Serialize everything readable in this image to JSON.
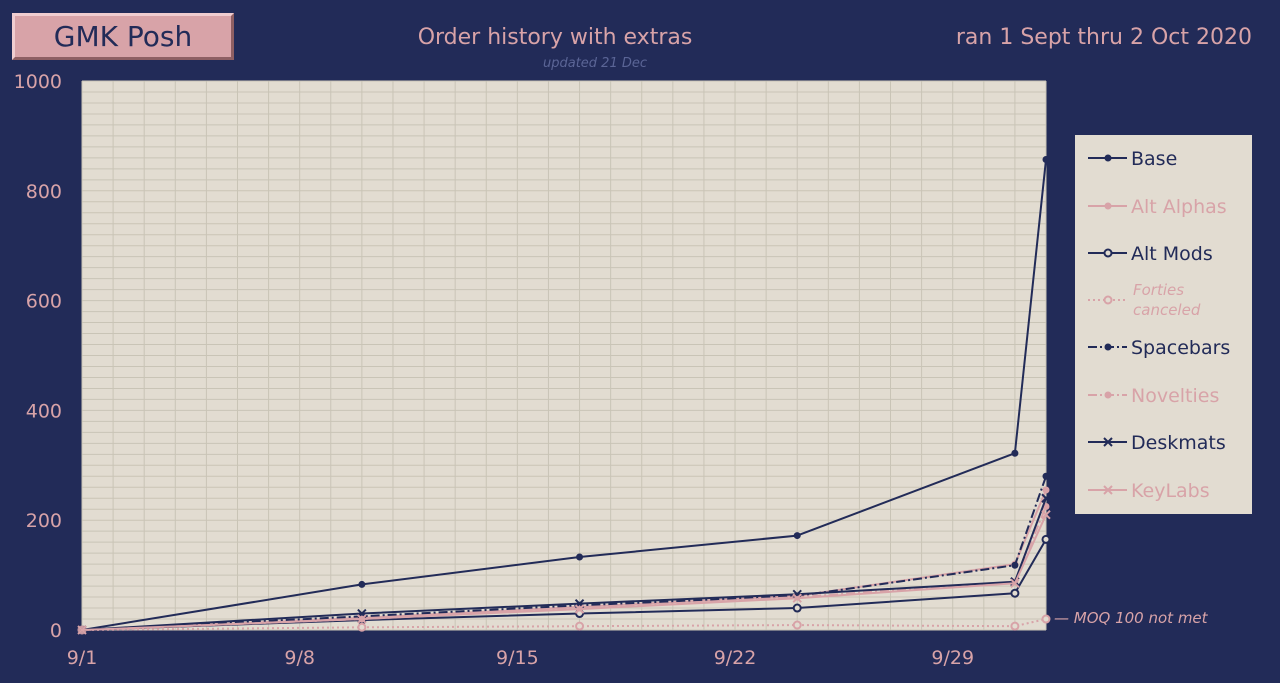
{
  "header": {
    "badge": "GMK Posh",
    "title": "Order history with extras",
    "subtitle": "updated 21 Dec",
    "range": "ran 1 Sept thru 2 Oct 2020"
  },
  "colors": {
    "background": "#222b58",
    "plot_bg": "#e2dcd1",
    "grid": "#c9c4b6",
    "navy": "#222b58",
    "pink": "#d8a3a8"
  },
  "chart_data": {
    "type": "line",
    "x": [
      "2020-09-01",
      "2020-09-10",
      "2020-09-17",
      "2020-09-24",
      "2020-10-01",
      "2020-10-02"
    ],
    "xticks": [
      "2020-09-01",
      "2020-09-08",
      "2020-09-15",
      "2020-09-22",
      "2020-09-29"
    ],
    "xtick_labels": [
      "9/1",
      "9/8",
      "9/15",
      "9/22",
      "9/29"
    ],
    "yticks": [
      0,
      200,
      400,
      600,
      800,
      1000
    ],
    "ylim": [
      0,
      1000
    ],
    "grid": true,
    "legend_position": "right",
    "series": [
      {
        "name": "Base",
        "values": [
          0,
          83,
          133,
          172,
          322,
          857
        ],
        "color": "#222b58",
        "marker": "dot",
        "dash": "solid"
      },
      {
        "name": "Alt Alphas",
        "values": [
          0,
          22,
          42,
          62,
          120,
          255
        ],
        "color": "#d8a3a8",
        "marker": "dot",
        "dash": "solid"
      },
      {
        "name": "Alt Mods",
        "values": [
          0,
          18,
          30,
          40,
          67,
          165
        ],
        "color": "#222b58",
        "marker": "ring",
        "dash": "solid"
      },
      {
        "name": "Forties canceled",
        "values": [
          0,
          5,
          7,
          9,
          7,
          20
        ],
        "color": "#d8a3a8",
        "marker": "ring",
        "dash": "dotted",
        "italic": true
      },
      {
        "name": "Spacebars",
        "values": [
          0,
          25,
          45,
          62,
          118,
          280
        ],
        "color": "#222b58",
        "marker": "dot",
        "dash": "dashdot"
      },
      {
        "name": "Novelties",
        "values": [
          0,
          20,
          40,
          60,
          88,
          225
        ],
        "color": "#d8a3a8",
        "marker": "dot",
        "dash": "dashdot"
      },
      {
        "name": "Deskmats",
        "values": [
          0,
          30,
          48,
          65,
          88,
          240
        ],
        "color": "#222b58",
        "marker": "x",
        "dash": "solid"
      },
      {
        "name": "KeyLabs",
        "values": [
          0,
          20,
          38,
          58,
          85,
          210
        ],
        "color": "#d8a3a8",
        "marker": "x",
        "dash": "solid"
      }
    ],
    "annotation": "— MOQ 100 not met"
  }
}
